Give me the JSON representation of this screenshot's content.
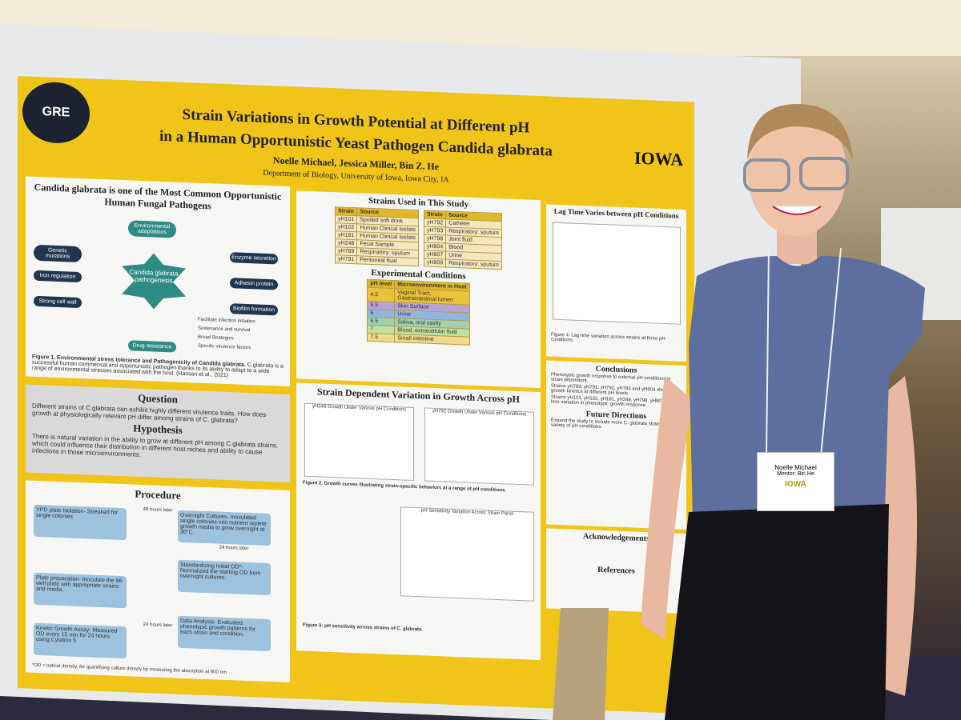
{
  "poster": {
    "logo": "GRE",
    "brand": "IOWA",
    "title_line1": "Strain Variations in Growth Potential at Different pH",
    "title_line2": "in a Human Opportunistic Yeast Pathogen Candida glabrata",
    "authors": "Noelle Michael, Jessica Miller, Bin Z. He",
    "department": "Department of Biology, University of Iowa, Iowa City, IA",
    "intro": {
      "heading": "Candida glabrata is one of the Most Common Opportunistic Human Fungal Pathogens",
      "center": "Candida glabrata pathogenesis",
      "top": "Environmental adaptations",
      "bottom": "Drug resistance",
      "left": [
        "Genetic mutations",
        "Iron regulation",
        "Strong cell wall"
      ],
      "right": [
        "Enzyme secretion",
        "Adhesin protein",
        "Biofilm formation"
      ],
      "key": [
        "Facilitate infection initiation",
        "Sustenance and survival",
        "Broad Strategies",
        "Specific virulence factors"
      ],
      "caption": "Figure 1. Environmental stress tolerance and Pathogenicity of Candida glabrata.",
      "text": "C.glabrata is a successful human commensal and opportunistic pathogen thanks to its ability to adapt to a wide range of environmental stresses associated with the host. (Hassan et al., 2021)"
    },
    "question": {
      "heading": "Question",
      "text": "Different strains of C.glabrata can exhibit highly different virulence traits. How does growth at physiologically relevant pH differ among strains of C. glabrata?"
    },
    "hypothesis": {
      "heading": "Hypothesis",
      "text": "There is natural variation in the ability to grow at different pH among C.glabrata strains, which could influence their distribution in different host niches and ability to cause infections in those microenvironments."
    },
    "procedure": {
      "heading": "Procedure",
      "steps": [
        "YPD plate Isolation- Streaked for single colonies",
        "Overnight Cultures- Inoculated single colonies into nutrient replete growth media to grow overnight at 30°C.",
        "Standardizing Initial OD*- Normalized the starting OD from overnight cultures.",
        "Plate preparation- Inoculate the 96 well plate with appropriate strains and media.",
        "Kinetic Growth Assay- Measured OD every 15 min for 24 hours using Cytation 5",
        "Data Analysis- Evaluated phenotypic growth patterns for each strain and condition."
      ],
      "notes": [
        "48 hours later",
        "24 hours later",
        "24 hours later"
      ],
      "footnote": "*OD = optical density, for quantifying culture density by measuring the absorption at 600 nm."
    },
    "strains": {
      "heading": "Strains Used in This Study",
      "header": [
        "Strain",
        "Source"
      ],
      "rows": [
        [
          "yH101",
          "Spoiled soft drink"
        ],
        [
          "yH102",
          "Human Clinical Isolate"
        ],
        [
          "yH181",
          "Human Clinical Isolate"
        ],
        [
          "yH248",
          "Fecal Sample"
        ],
        [
          "yH789",
          "Respiratory: sputum"
        ],
        [
          "yH791",
          "Peritoneal fluid"
        ],
        [
          "yH792",
          "Catheter"
        ],
        [
          "yH793",
          "Respiratory: sputum"
        ],
        [
          "yH798",
          "Joint fluid"
        ],
        [
          "yH804",
          "Blood"
        ],
        [
          "yH807",
          "Urine"
        ],
        [
          "yH809",
          "Respiratory: sputum"
        ]
      ]
    },
    "conditions": {
      "heading": "Experimental Conditions",
      "header": [
        "pH level",
        "Microenvironment in Host"
      ],
      "rows": [
        [
          "4.5",
          "Vaginal Tract, Gastrointestinal lumen"
        ],
        [
          "5.5",
          "Skin Surface"
        ],
        [
          "6",
          "Urine"
        ],
        [
          "6.5",
          "Saliva, oral cavity"
        ],
        [
          "7",
          "Blood, extracellular fluid"
        ],
        [
          "7.5",
          "Small intestine"
        ]
      ]
    },
    "growth": {
      "heading": "Strain Dependent Variation in Growth Across pH",
      "plots": [
        "yH248 Growth Under Various pH Conditions",
        "yH792 Growth Under Various pH Conditions",
        "pH Sensitivity Variation Across Strain Panel"
      ],
      "caption": "Figure 2. Growth curves illustrating strain-specific behaviors at a range of pH conditions.",
      "caption2": "Figure 3: pH sensitivity across strains of C. glabrata."
    },
    "lag": {
      "heading": "Lag Time Varies between pH Conditions",
      "caption": "Figure 4. Lag time variation across strains at three pH conditions."
    },
    "conclusions": {
      "heading": "Conclusions",
      "items": [
        "Phenotypic growth response to external pH conditions is strain dependent.",
        "Strains yH789, yH791, yH792, yH793 and yH804 show more growth kinetics at different pH levels.",
        "Strains yH101, yH102, yH181, yH248, yH798, yH807 show less variation in phenotypic growth response."
      ]
    },
    "future": {
      "heading": "Future Directions",
      "items": [
        "Expand the study to include more C. glabrata strains and variety of pH conditions."
      ]
    },
    "acknowledgements": {
      "heading": "Acknowledgements"
    },
    "references": {
      "heading": "References"
    }
  },
  "name_tag": {
    "name": "Noelle Michael",
    "role": "Mentor: Bin He",
    "brand": "IOWA"
  }
}
